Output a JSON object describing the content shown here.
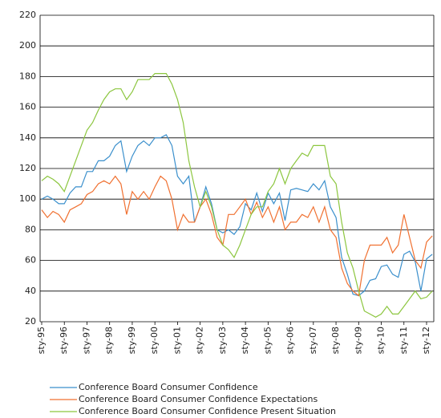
{
  "chart_data": {
    "type": "line",
    "categories": [
      "sty-95",
      null,
      null,
      null,
      "sty-96",
      null,
      null,
      null,
      "sty-97",
      null,
      null,
      null,
      "sty-98",
      null,
      null,
      null,
      "sty-99",
      null,
      null,
      null,
      "sty-00",
      null,
      null,
      null,
      "sty-01",
      null,
      null,
      null,
      "sty-02",
      null,
      null,
      null,
      "sty-03",
      null,
      null,
      null,
      "sty-04",
      null,
      null,
      null,
      "sty-05",
      null,
      null,
      null,
      "sty-06",
      null,
      null,
      null,
      "sty-07",
      null,
      null,
      null,
      "sty-08",
      null,
      null,
      null,
      "sty-09",
      null,
      null,
      null,
      "sty-10",
      null,
      null,
      null,
      "sty-11",
      null,
      null,
      null,
      "sty-12",
      null
    ],
    "series": [
      {
        "name": "Conference Board Consumer Confidence",
        "color": "#3a8fcc",
        "values": [
          100,
          102,
          100,
          97,
          97,
          104,
          108,
          108,
          118,
          118,
          125,
          125,
          128,
          135,
          138,
          118,
          128,
          135,
          138,
          135,
          140,
          140,
          142,
          135,
          115,
          110,
          115,
          85,
          95,
          108,
          97,
          80,
          78,
          80,
          77,
          82,
          97,
          93,
          104,
          92,
          104,
          97,
          104,
          86,
          106,
          107,
          106,
          105,
          110,
          106,
          112,
          95,
          88,
          62,
          51,
          38,
          37,
          40,
          47,
          48,
          56,
          57,
          51,
          49,
          64,
          66,
          59,
          40,
          61,
          64
        ]
      },
      {
        "name": "Conference Board Consumer Confidence Expectations",
        "color": "#f07030",
        "values": [
          93,
          88,
          92,
          90,
          85,
          93,
          95,
          97,
          103,
          105,
          110,
          112,
          110,
          115,
          110,
          90,
          105,
          100,
          105,
          100,
          108,
          115,
          112,
          100,
          80,
          90,
          85,
          85,
          95,
          100,
          90,
          75,
          70,
          90,
          90,
          95,
          100,
          90,
          98,
          88,
          95,
          85,
          95,
          80,
          85,
          85,
          90,
          88,
          95,
          85,
          95,
          80,
          75,
          55,
          45,
          40,
          37,
          60,
          70,
          70,
          70,
          75,
          65,
          70,
          90,
          75,
          60,
          55,
          72,
          76
        ]
      },
      {
        "name": "Conference Board Consumer Confidence Present Situation",
        "color": "#8cc63f",
        "values": [
          112,
          115,
          113,
          110,
          105,
          115,
          125,
          135,
          145,
          150,
          158,
          165,
          170,
          172,
          172,
          165,
          170,
          178,
          178,
          178,
          182,
          182,
          182,
          175,
          165,
          150,
          125,
          108,
          95,
          105,
          95,
          80,
          70,
          67,
          62,
          70,
          80,
          90,
          95,
          95,
          105,
          110,
          120,
          110,
          120,
          125,
          130,
          128,
          135,
          135,
          135,
          115,
          110,
          85,
          65,
          55,
          40,
          27,
          25,
          23,
          25,
          30,
          25,
          25,
          30,
          35,
          40,
          35,
          36,
          40
        ]
      }
    ],
    "ylim": [
      20,
      220
    ],
    "yticks": [
      20,
      40,
      60,
      80,
      100,
      120,
      140,
      160,
      180,
      200,
      220
    ],
    "grid": true
  }
}
